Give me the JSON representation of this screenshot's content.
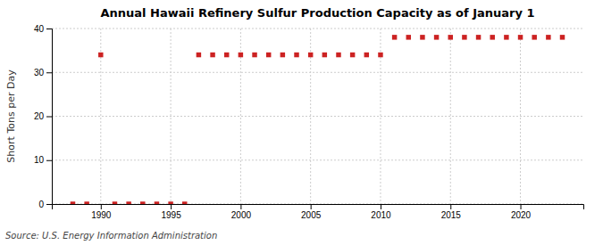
{
  "chart_data": {
    "type": "scatter",
    "title": "Annual Hawaii Refinery Sulfur Production Capacity as of January 1",
    "ylabel": "Short Tons per Day",
    "source": "Source: U.S. Energy Information Administration",
    "color": "#cc2222",
    "marker": "square",
    "grid": true,
    "x": [
      1988,
      1989,
      1990,
      1991,
      1992,
      1993,
      1994,
      1995,
      1996,
      1997,
      1998,
      1999,
      2000,
      2001,
      2002,
      2003,
      2004,
      2005,
      2006,
      2007,
      2008,
      2009,
      2010,
      2011,
      2012,
      2013,
      2014,
      2015,
      2016,
      2017,
      2018,
      2019,
      2020,
      2021,
      2022,
      2023
    ],
    "values": [
      0,
      0,
      34,
      0,
      0,
      0,
      0,
      0,
      0,
      34,
      34,
      34,
      34,
      34,
      34,
      34,
      34,
      34,
      34,
      34,
      34,
      34,
      34,
      38,
      38,
      38,
      38,
      38,
      38,
      38,
      38,
      38,
      38,
      38,
      38,
      38
    ],
    "xlim": [
      1986.5,
      2024.5
    ],
    "xticks": [
      1990,
      1995,
      2000,
      2005,
      2010,
      2015,
      2020
    ],
    "ylim": [
      0,
      40
    ],
    "yticks": [
      0,
      10,
      20,
      30,
      40
    ]
  }
}
